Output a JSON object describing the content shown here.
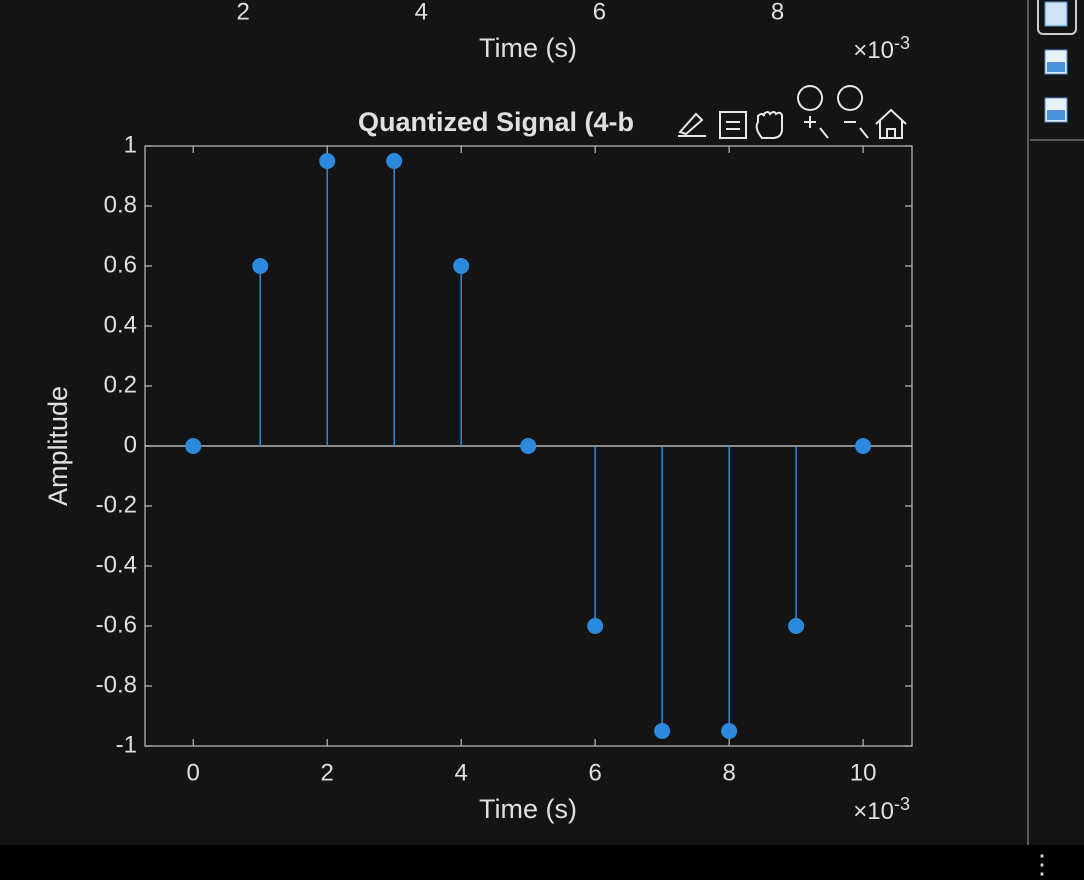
{
  "chart_data": [
    {
      "type": "line",
      "xlabel": "Time (s)",
      "xticks": [
        2,
        4,
        6,
        8
      ],
      "xlim": [
        -0.63,
        10.7
      ],
      "x_multiplier": {
        "base": "×10",
        "exponent": "-3"
      }
    },
    {
      "type": "stem",
      "title": "Quantized Signal (4-b",
      "xlabel": "Time (s)",
      "ylabel": "Amplitude",
      "x": [
        0,
        1,
        2,
        3,
        4,
        5,
        6,
        7,
        8,
        9,
        10
      ],
      "values": [
        0,
        0.6,
        0.95,
        0.95,
        0.6,
        0,
        -0.6,
        -0.95,
        -0.95,
        -0.6,
        0
      ],
      "color": "#2b8ade",
      "xlim": [
        -0.72,
        10.73
      ],
      "ylim": [
        -1,
        1
      ],
      "xticks": [
        0,
        2,
        4,
        6,
        8,
        10
      ],
      "yticks": [
        -1,
        -0.8,
        -0.6,
        -0.4,
        -0.2,
        0,
        0.2,
        0.4,
        0.6,
        0.8,
        1
      ],
      "x_multiplier": {
        "base": "×10",
        "exponent": "-3"
      }
    }
  ]
}
